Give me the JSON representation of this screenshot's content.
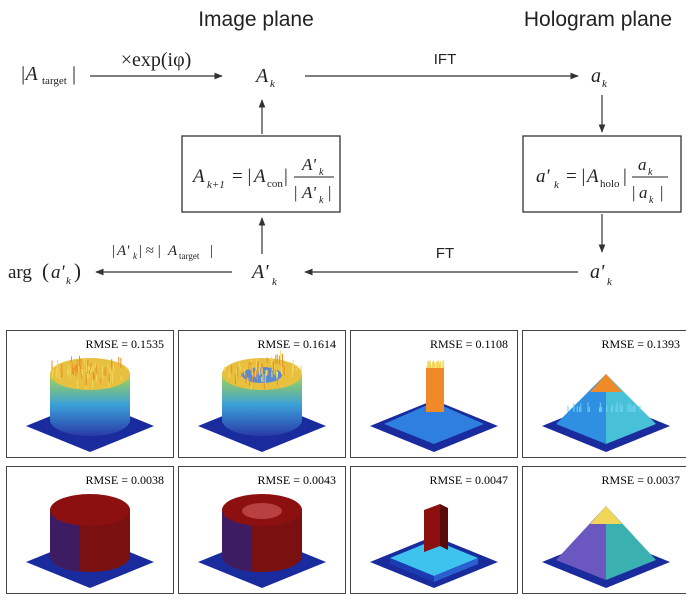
{
  "diagram": {
    "headings": {
      "image_plane": "Image plane",
      "hologram_plane": "Hologram plane"
    },
    "arrows": {
      "ift": "IFT",
      "ft": "FT",
      "times_exp": "×exp(iφ)"
    },
    "nodes": {
      "a_target": "|A",
      "a_target_sub": "target",
      "A_k": "A",
      "A_k_sub": "k",
      "a_k": "a",
      "a_k_sub": "k",
      "a_prime_k": "a'",
      "a_prime_k_sub": "k",
      "A_prime_k": "A'",
      "A_prime_k_sub": "k",
      "arg": "arg",
      "condition_rhs_sub": "target"
    },
    "boxes": {
      "left": {
        "lhs": "A",
        "lhs_sub": "k+1",
        "abs_sub": "con",
        "frac_num": "A'",
        "frac_num_sub": "k",
        "frac_den": "A'",
        "frac_den_sub": "k"
      },
      "right": {
        "lhs": "a'",
        "lhs_sub": "k",
        "abs_sub": "holo",
        "frac_num": "a",
        "frac_num_sub": "k",
        "frac_den": "a",
        "frac_den_sub": "k"
      }
    }
  },
  "panels": [
    {
      "rmse": "RMSE = 0.1535",
      "shape": "cylinder",
      "style": "noisy"
    },
    {
      "rmse": "RMSE = 0.1614",
      "shape": "ring",
      "style": "noisy"
    },
    {
      "rmse": "RMSE = 0.1108",
      "shape": "step",
      "style": "noisy"
    },
    {
      "rmse": "RMSE = 0.1393",
      "shape": "pyramid",
      "style": "noisy"
    },
    {
      "rmse": "RMSE = 0.0038",
      "shape": "cylinder",
      "style": "clean"
    },
    {
      "rmse": "RMSE = 0.0043",
      "shape": "ring",
      "style": "clean"
    },
    {
      "rmse": "RMSE = 0.0047",
      "shape": "step",
      "style": "clean"
    },
    {
      "rmse": "RMSE = 0.0037",
      "shape": "pyramid",
      "style": "clean"
    }
  ],
  "colors": {
    "base_blue": "#1a2b9e",
    "dark_red": "#8c1010",
    "cyan": "#3ec2ee",
    "yellow": "#f2d65a",
    "orange": "#f08a28"
  }
}
